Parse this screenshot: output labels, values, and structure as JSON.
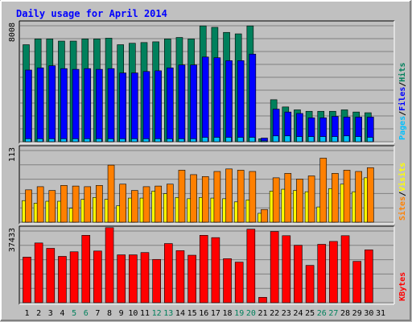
{
  "colors": {
    "background": "#c0c0c0",
    "frame_dark": "#808080",
    "frame_light": "#ffffff",
    "plot_bg": "#c0c0c0",
    "grid": "#808080",
    "title": "#0000ff",
    "hits": "#00805c",
    "files": "#0000ff",
    "pages": "#00c0ff",
    "visits": "#ffff00",
    "sites": "#ff8000",
    "kbytes": "#ff0000",
    "weekday_label": "#000000",
    "weekend_label": "#00805c"
  },
  "chart_data": {
    "type": "bar",
    "title": "Daily usage for April 2014",
    "categories": [
      "1",
      "2",
      "3",
      "4",
      "5",
      "6",
      "7",
      "8",
      "9",
      "10",
      "11",
      "12",
      "13",
      "14",
      "15",
      "16",
      "17",
      "18",
      "19",
      "20",
      "21",
      "22",
      "23",
      "24",
      "25",
      "26",
      "27",
      "28",
      "29",
      "30",
      "31"
    ],
    "weekend_days": [
      "5",
      "6",
      "12",
      "13",
      "19",
      "20",
      "26",
      "27"
    ],
    "panels": [
      {
        "name": "hits-files-pages",
        "max_label": "8008",
        "ymax": 8008,
        "legend": [
          {
            "text": "Pages",
            "color": "#00c0ff"
          },
          {
            "text": "/",
            "color": "#000000"
          },
          {
            "text": "Files",
            "color": "#0000ff"
          },
          {
            "text": "/",
            "color": "#000000"
          },
          {
            "text": "Hits",
            "color": "#00805c"
          }
        ],
        "series": [
          {
            "name": "Hits",
            "color": "#00805c",
            "values": [
              6700,
              7100,
              7100,
              6950,
              6950,
              7100,
              7100,
              7150,
              6700,
              6800,
              6850,
              6900,
              7100,
              7200,
              7100,
              8000,
              7900,
              7550,
              7450,
              8000,
              200,
              2900,
              2400,
              2200,
              2100,
              2100,
              2100,
              2200,
              2050,
              2000,
              0
            ]
          },
          {
            "name": "Files",
            "color": "#0000ff",
            "values": [
              4950,
              5100,
              5250,
              5050,
              5000,
              5050,
              5000,
              5050,
              4750,
              4750,
              4850,
              4900,
              5100,
              5300,
              5300,
              5850,
              5800,
              5600,
              5600,
              6050,
              250,
              2250,
              2050,
              1950,
              1650,
              1650,
              1750,
              1700,
              1700,
              1700,
              0
            ]
          },
          {
            "name": "Pages",
            "color": "#00c0ff",
            "values": [
              200,
              200,
              200,
              200,
              200,
              200,
              200,
              200,
              200,
              200,
              200,
              200,
              200,
              200,
              200,
              300,
              300,
              300,
              300,
              300,
              50,
              400,
              400,
              350,
              350,
              350,
              350,
              400,
              350,
              300,
              0
            ]
          }
        ]
      },
      {
        "name": "visits-sites",
        "max_label": "113",
        "ymax": 113,
        "legend": [
          {
            "text": "Sites",
            "color": "#ff8000"
          },
          {
            "text": "/",
            "color": "#000000"
          },
          {
            "text": "Visits",
            "color": "#ffff00"
          }
        ],
        "series": [
          {
            "name": "Visits",
            "color": "#ffff00",
            "values": [
              34,
              30,
              33,
              33,
              22,
              36,
              39,
              36,
              26,
              38,
              38,
              49,
              45,
              39,
              37,
              39,
              38,
              37,
              32,
              35,
              14,
              49,
              52,
              50,
              48,
              24,
              53,
              60,
              48,
              70,
              0
            ]
          },
          {
            "name": "Sites",
            "color": "#ff8000",
            "values": [
              51,
              56,
              50,
              58,
              57,
              56,
              58,
              90,
              60,
              50,
              56,
              57,
              60,
              82,
              75,
              72,
              80,
              84,
              82,
              80,
              20,
              70,
              77,
              68,
              73,
              101,
              77,
              82,
              80,
              86,
              0
            ]
          }
        ]
      },
      {
        "name": "kbytes",
        "max_label": "37433",
        "ymax": 37433,
        "legend": [
          {
            "text": "KBytes",
            "color": "#ff0000"
          }
        ],
        "series": [
          {
            "name": "KBytes",
            "color": "#ff0000",
            "values": [
              23800,
              31200,
              28400,
              24200,
              26600,
              35200,
              27000,
              39200,
              25000,
              25000,
              26200,
              22600,
              30900,
              27200,
              24800,
              35200,
              34000,
              23000,
              21200,
              38400,
              2800,
              37200,
              35000,
              30000,
              19500,
              30500,
              32000,
              35000,
              21600,
              27600,
              0
            ]
          }
        ]
      }
    ]
  }
}
